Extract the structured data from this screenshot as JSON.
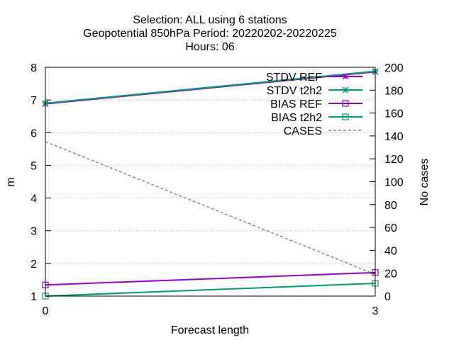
{
  "chart_data": {
    "type": "line",
    "title_lines": [
      "Selection: ALL using     6 stations",
      "Geopotential 850hPa   Period: 20220202-20220225",
      "Hours:  06"
    ],
    "xlabel": "Forecast length",
    "ylabel": "m",
    "y2label": "No cases",
    "x": [
      0,
      3
    ],
    "xlim": [
      0,
      3
    ],
    "xticks": [
      0,
      3
    ],
    "ylim": [
      1,
      8
    ],
    "yticks": [
      1,
      2,
      3,
      4,
      5,
      6,
      7,
      8
    ],
    "y2lim": [
      0,
      200
    ],
    "y2ticks": [
      0,
      20,
      40,
      60,
      80,
      100,
      120,
      140,
      160,
      180,
      200
    ],
    "grid": "horizontal dotted",
    "legend_position": "top-right",
    "series": [
      {
        "name": "STDV REF",
        "axis": "y",
        "values": [
          6.88,
          7.86
        ],
        "color": "#9400d3",
        "marker": "star",
        "dash": "solid"
      },
      {
        "name": "STDV t2h2",
        "axis": "y",
        "values": [
          6.9,
          7.88
        ],
        "color": "#009e73",
        "marker": "asterisk",
        "dash": "solid"
      },
      {
        "name": "BIAS REF",
        "axis": "y",
        "values": [
          1.34,
          1.72
        ],
        "color": "#9400d3",
        "marker": "square",
        "dash": "solid"
      },
      {
        "name": "BIAS t2h2",
        "axis": "y",
        "values": [
          1.0,
          1.39
        ],
        "color": "#009e73",
        "marker": "square",
        "dash": "solid"
      },
      {
        "name": "CASES",
        "axis": "y2",
        "values": [
          135,
          19
        ],
        "color": "#808080",
        "marker": "none",
        "dash": "dashed"
      }
    ]
  }
}
